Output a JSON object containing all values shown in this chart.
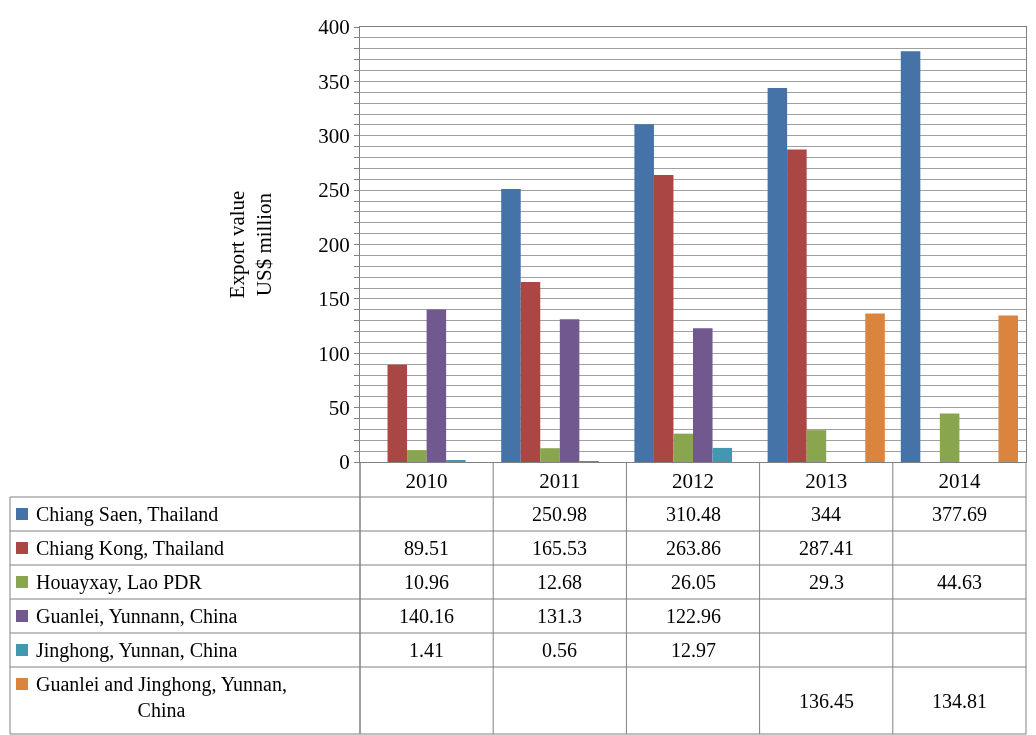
{
  "chart_data": {
    "type": "bar",
    "ylabel": "Export value\nUS$ million",
    "categories": [
      "2010",
      "2011",
      "2012",
      "2013",
      "2014"
    ],
    "series": [
      {
        "name": "Chiang Saen, Thailand",
        "color": "#4572a7",
        "values": [
          null,
          250.98,
          310.48,
          344,
          377.69
        ]
      },
      {
        "name": "Chiang Kong, Thailand",
        "color": "#aa4643",
        "values": [
          89.51,
          165.53,
          263.86,
          287.41,
          null
        ]
      },
      {
        "name": "Houayxay, Lao PDR",
        "color": "#89a54e",
        "values": [
          10.96,
          12.68,
          26.05,
          29.3,
          44.63
        ]
      },
      {
        "name": "Guanlei, Yunnann, China",
        "color": "#71588f",
        "values": [
          140.16,
          131.3,
          122.96,
          null,
          null
        ]
      },
      {
        "name": "Jinghong, Yunnan, China",
        "color": "#4198af",
        "values": [
          1.41,
          0.56,
          12.97,
          null,
          null
        ]
      },
      {
        "name": "Guanlei and Jinghong, Yunnan, China",
        "color": "#db843d",
        "values": [
          null,
          null,
          null,
          136.45,
          134.81
        ]
      }
    ],
    "ylim": [
      0,
      400
    ],
    "yticks": [
      0,
      {
        "value": 10,
        "label": null
      },
      {
        "value": 20,
        "label": null
      },
      {
        "value": 30,
        "label": null
      },
      {
        "value": 40,
        "label": null
      },
      50,
      {
        "value": 60,
        "label": null
      },
      {
        "value": 70,
        "label": null
      },
      {
        "value": 80,
        "label": null
      },
      {
        "value": 90,
        "label": null
      },
      100,
      {
        "value": 110,
        "label": null
      },
      {
        "value": 120,
        "label": null
      },
      {
        "value": 130,
        "label": null
      },
      {
        "value": 140,
        "label": null
      },
      150,
      {
        "value": 160,
        "label": null
      },
      {
        "value": 170,
        "label": null
      },
      {
        "value": 180,
        "label": null
      },
      {
        "value": 190,
        "label": null
      },
      200,
      {
        "value": 210,
        "label": null
      },
      {
        "value": 220,
        "label": null
      },
      {
        "value": 230,
        "label": null
      },
      {
        "value": 240,
        "label": null
      },
      250,
      {
        "value": 260,
        "label": null
      },
      {
        "value": 270,
        "label": null
      },
      {
        "value": 280,
        "label": null
      },
      {
        "value": 290,
        "label": null
      },
      300,
      {
        "value": 310,
        "label": null
      },
      {
        "value": 320,
        "label": null
      },
      {
        "value": 330,
        "label": null
      },
      {
        "value": 340,
        "label": null
      },
      350,
      {
        "value": 360,
        "label": null
      },
      {
        "value": 370,
        "label": null
      },
      {
        "value": 380,
        "label": null
      },
      {
        "value": 390,
        "label": null
      },
      400
    ],
    "grid": "y",
    "data_labels": true,
    "legend": "bottom left"
  }
}
